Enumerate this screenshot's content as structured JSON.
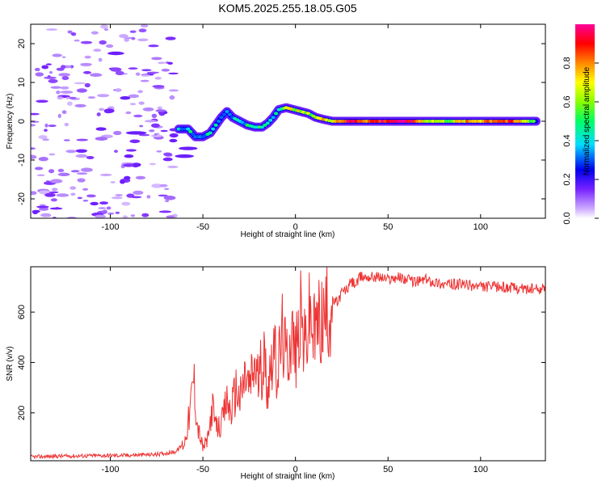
{
  "title": "KOM5.2025.255.18.05.G05",
  "chart_data": [
    {
      "type": "heatmap",
      "xlabel": "Height of straight line (km)",
      "ylabel": "Frequency (Hz)",
      "xlim": [
        -143,
        135
      ],
      "ylim": [
        -25,
        25
      ],
      "xticks": [
        -100,
        -50,
        0,
        50,
        100
      ],
      "yticks": [
        -20,
        -10,
        0,
        10,
        20
      ],
      "xtick_labels": [
        "-100",
        "-50",
        "0",
        "50",
        "100"
      ],
      "ytick_labels": [
        "-20",
        "-10",
        "0",
        "10",
        "20"
      ],
      "ridge": [
        {
          "x": -63,
          "y": -2,
          "a": 0.35
        },
        {
          "x": -58,
          "y": -2,
          "a": 0.45
        },
        {
          "x": -54,
          "y": -4,
          "a": 0.3
        },
        {
          "x": -50,
          "y": -4,
          "a": 0.35
        },
        {
          "x": -46,
          "y": -3,
          "a": 0.4
        },
        {
          "x": -43,
          "y": -1,
          "a": 0.4
        },
        {
          "x": -40,
          "y": 1,
          "a": 0.35
        },
        {
          "x": -37,
          "y": 2.5,
          "a": 0.35
        },
        {
          "x": -34,
          "y": 1,
          "a": 0.4
        },
        {
          "x": -30,
          "y": 0,
          "a": 0.4
        },
        {
          "x": -26,
          "y": -1,
          "a": 0.45
        },
        {
          "x": -22,
          "y": -1.5,
          "a": 0.4
        },
        {
          "x": -18,
          "y": -1.5,
          "a": 0.45
        },
        {
          "x": -15,
          "y": -0.5,
          "a": 0.45
        },
        {
          "x": -12,
          "y": 1,
          "a": 0.45
        },
        {
          "x": -9,
          "y": 3,
          "a": 0.55
        },
        {
          "x": -5,
          "y": 3.5,
          "a": 0.6
        },
        {
          "x": -1,
          "y": 3,
          "a": 0.7
        },
        {
          "x": 3,
          "y": 2.5,
          "a": 0.6
        },
        {
          "x": 7,
          "y": 2,
          "a": 0.6
        },
        {
          "x": 11,
          "y": 1,
          "a": 0.65
        },
        {
          "x": 15,
          "y": 0.5,
          "a": 0.7
        },
        {
          "x": 20,
          "y": 0,
          "a": 0.75
        },
        {
          "x": 30,
          "y": 0,
          "a": 0.95
        },
        {
          "x": 40,
          "y": 0,
          "a": 0.85
        },
        {
          "x": 50,
          "y": 0,
          "a": 0.95
        },
        {
          "x": 60,
          "y": 0,
          "a": 1.0
        },
        {
          "x": 70,
          "y": 0,
          "a": 0.7
        },
        {
          "x": 80,
          "y": 0,
          "a": 0.6
        },
        {
          "x": 90,
          "y": 0,
          "a": 0.7
        },
        {
          "x": 100,
          "y": 0,
          "a": 0.8
        },
        {
          "x": 110,
          "y": 0,
          "a": 0.9
        },
        {
          "x": 120,
          "y": 0,
          "a": 0.75
        },
        {
          "x": 130,
          "y": 0,
          "a": 0.55
        }
      ],
      "noise_x_range": [
        -143,
        -65
      ],
      "noise_y_range": [
        -25,
        25
      ],
      "colorbar": {
        "label": "Normalized spectral amplitude",
        "range": [
          0.0,
          1.0
        ],
        "ticks": [
          0.0,
          0.2,
          0.4,
          0.6,
          0.8
        ],
        "tick_labels": [
          "0.0",
          "0.2",
          "0.4",
          "0.6",
          "0.8"
        ]
      }
    },
    {
      "type": "line",
      "xlabel": "Height of straight line (km)",
      "ylabel": "SNR (v/v)",
      "xlim": [
        -143,
        135
      ],
      "ylim": [
        10,
        780
      ],
      "xticks": [
        -100,
        -50,
        0,
        50,
        100
      ],
      "yticks": [
        200,
        400,
        600
      ],
      "xtick_labels": [
        "-100",
        "-50",
        "0",
        "50",
        "100"
      ],
      "ytick_labels": [
        "200",
        "400",
        "600"
      ],
      "color": "#ee3333",
      "series": [
        {
          "name": "SNR",
          "x": [
            -143,
            -130,
            -110,
            -90,
            -75,
            -65,
            -60,
            -57,
            -55,
            -53,
            -50,
            -47,
            -45,
            -43,
            -40,
            -37,
            -35,
            -32,
            -30,
            -27,
            -25,
            -22,
            -20,
            -17,
            -15,
            -12,
            -10,
            -7,
            -5,
            -2,
            0,
            3,
            5,
            8,
            10,
            12,
            15,
            18,
            20,
            23,
            25,
            28,
            30,
            33,
            35,
            40,
            45,
            50,
            55,
            60,
            65,
            70,
            75,
            80,
            90,
            100,
            110,
            120,
            130,
            135
          ],
          "y": [
            25,
            28,
            30,
            32,
            35,
            45,
            80,
            200,
            350,
            150,
            60,
            100,
            230,
            140,
            150,
            250,
            200,
            300,
            250,
            350,
            300,
            390,
            330,
            420,
            300,
            480,
            350,
            520,
            410,
            530,
            420,
            580,
            460,
            600,
            500,
            560,
            570,
            600,
            640,
            640,
            680,
            690,
            720,
            710,
            740,
            740,
            740,
            730,
            740,
            730,
            720,
            730,
            720,
            710,
            710,
            700,
            700,
            695,
            690,
            695
          ]
        }
      ]
    }
  ]
}
